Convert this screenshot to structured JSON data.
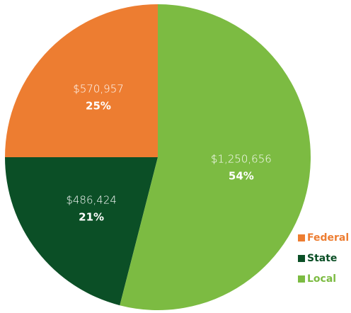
{
  "chart_data": {
    "type": "pie",
    "categories": [
      "Federal",
      "State",
      "Local"
    ],
    "values": [
      25,
      21,
      54
    ],
    "value_labels": [
      "25%",
      "21%",
      "54%"
    ],
    "amount_labels": [
      "$570,957",
      "$486,424",
      "$1,250,656"
    ],
    "colors": [
      "#ed7d31",
      "#0b4f26",
      "#7cbb42"
    ],
    "legend": "bottom-right"
  }
}
